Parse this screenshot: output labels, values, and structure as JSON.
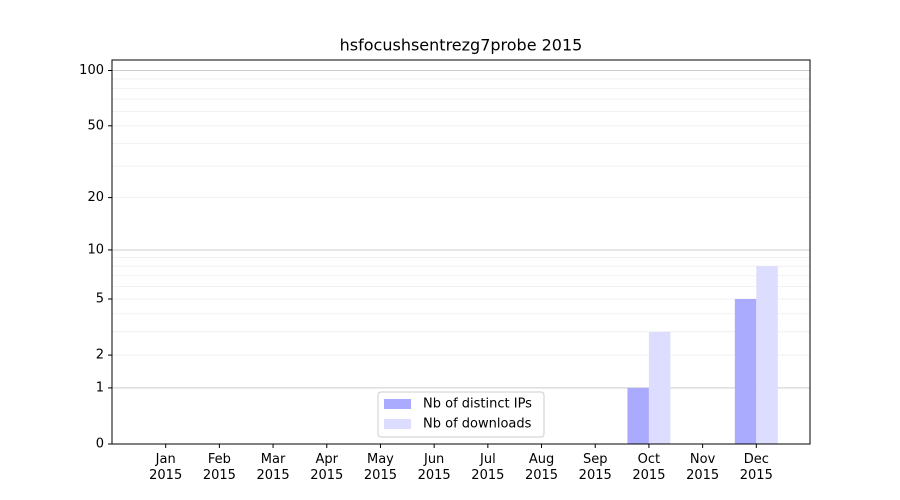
{
  "chart_data": {
    "type": "bar",
    "title": "hsfocushsentrezg7probe 2015",
    "categories": [
      "Jan\n2015",
      "Feb\n2015",
      "Mar\n2015",
      "Apr\n2015",
      "May\n2015",
      "Jun\n2015",
      "Jul\n2015",
      "Aug\n2015",
      "Sep\n2015",
      "Oct\n2015",
      "Nov\n2015",
      "Dec\n2015"
    ],
    "series": [
      {
        "name": "Nb of distinct IPs",
        "color": "#aaaaff",
        "values": [
          0,
          0,
          0,
          0,
          0,
          0,
          0,
          0,
          0,
          1,
          0,
          5
        ]
      },
      {
        "name": "Nb of downloads",
        "color": "#ddddff",
        "values": [
          0,
          0,
          0,
          0,
          0,
          0,
          0,
          0,
          0,
          3,
          0,
          8
        ]
      }
    ],
    "yscale": "log1p",
    "ylim": [
      0,
      114
    ],
    "yticks": [
      0,
      1,
      2,
      5,
      10,
      20,
      50,
      100
    ],
    "major_grid": [
      1,
      10,
      100
    ],
    "minor_grid": [
      2,
      3,
      4,
      5,
      6,
      7,
      8,
      9,
      20,
      30,
      40,
      50,
      60,
      70,
      80,
      90
    ],
    "legend": "lower center"
  }
}
